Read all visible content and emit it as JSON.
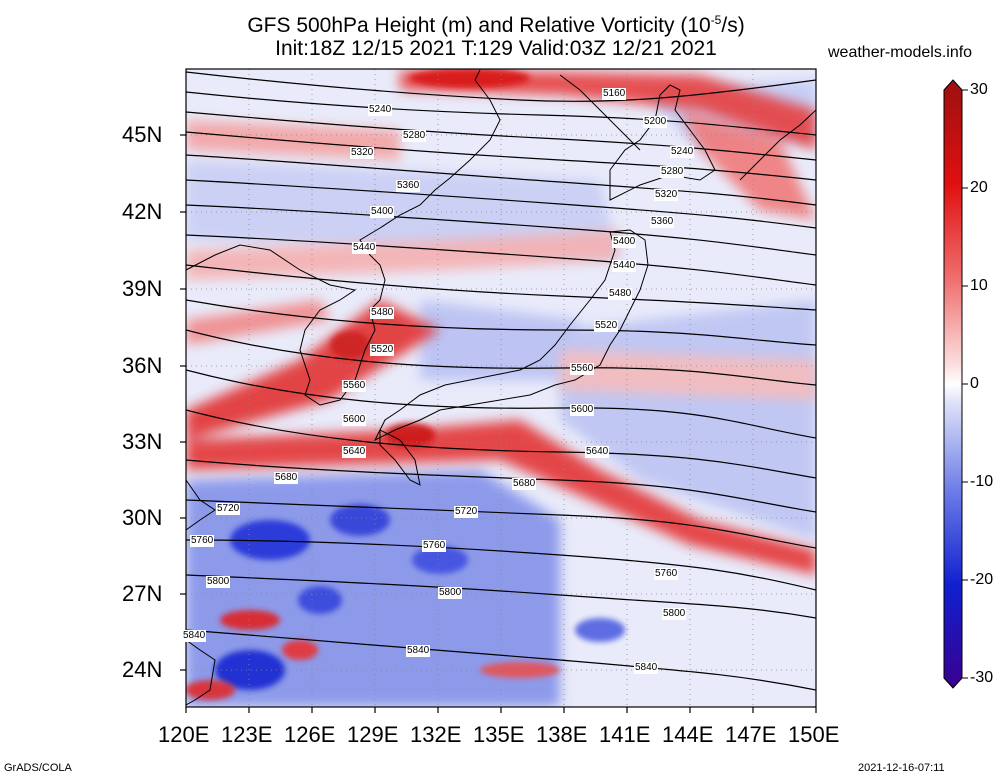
{
  "title": "GFS 500hPa Height (m) and Relative Vorticity (10",
  "title_sup": "-5",
  "title_end": "/s)",
  "subtitle": "Init:18Z 12/15 2021 T:129 Valid:03Z 12/21 2021",
  "site": "weather-models.info",
  "footer_left": "GrADS/COLA",
  "footer_right": "2021-12-16-07:11",
  "lat_labels": [
    "45N",
    "42N",
    "39N",
    "36N",
    "33N",
    "30N",
    "27N",
    "24N"
  ],
  "lon_labels": [
    "120E",
    "123E",
    "126E",
    "129E",
    "132E",
    "135E",
    "138E",
    "141E",
    "144E",
    "147E",
    "150E"
  ],
  "colorbar_labels": [
    "30",
    "20",
    "10",
    "0",
    "-10",
    "-20",
    "-30"
  ],
  "colors": {
    "positive": "#e01010",
    "negative": "#1020d0",
    "neutral": "#ffffff"
  },
  "contours": [
    {
      "label": "5160"
    },
    {
      "label": "5200"
    },
    {
      "label": "5240"
    },
    {
      "label": "5280"
    },
    {
      "label": "5320"
    },
    {
      "label": "5360"
    },
    {
      "label": "5400"
    },
    {
      "label": "5440"
    },
    {
      "label": "5480"
    },
    {
      "label": "5520"
    },
    {
      "label": "5560"
    },
    {
      "label": "5600"
    },
    {
      "label": "5640"
    },
    {
      "label": "5680"
    },
    {
      "label": "5720"
    },
    {
      "label": "5760"
    },
    {
      "label": "5800"
    },
    {
      "label": "5840"
    }
  ]
}
